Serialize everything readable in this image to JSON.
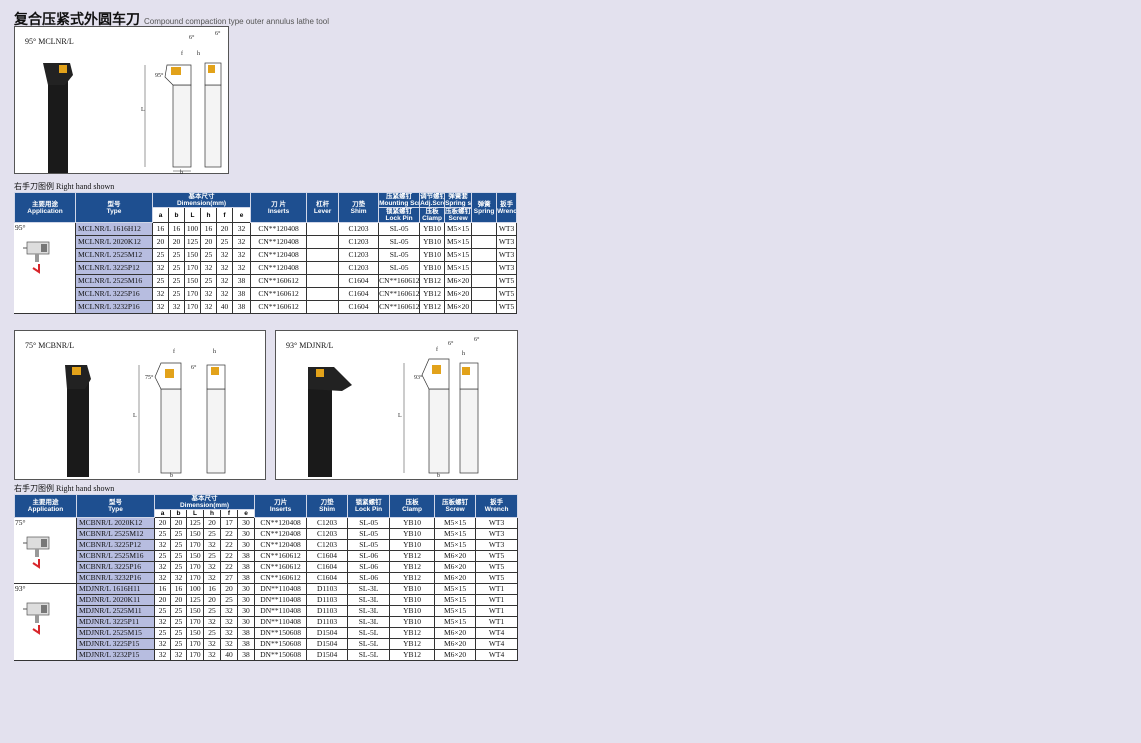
{
  "header": {
    "title": "复合压紧式外圆车刀",
    "subtitle": "Compound compaction type outer annulus lathe tool"
  },
  "figures": [
    {
      "label": "95° MCLNR/L",
      "marks": [
        "6°",
        "6°",
        "95°",
        "L",
        "b",
        "f",
        "h"
      ]
    },
    {
      "label": "75° MCBNR/L",
      "marks": [
        "6°",
        "75°",
        "L",
        "b",
        "f",
        "h"
      ]
    },
    {
      "label": "93° MDJNR/L",
      "marks": [
        "6°",
        "6°",
        "93°",
        "L",
        "b",
        "f",
        "h"
      ]
    }
  ],
  "notes": [
    "右手刀图例 Right hand shown",
    "右手刀图例 Right hand shown"
  ],
  "table1": {
    "columns": [
      {
        "zh": "主要用途",
        "en": "Application"
      },
      {
        "zh": "型号",
        "en": "Type"
      }
    ],
    "dimension": {
      "zh": "基本尺寸",
      "en": "Dimension(mm)"
    },
    "dims": [
      "a",
      "b",
      "L",
      "h",
      "f",
      "e"
    ],
    "after": [
      {
        "zh": "刀 片",
        "en": "Inserts"
      },
      {
        "zh": "杠杆",
        "en": "Lever"
      },
      {
        "zh": "刀垫",
        "en": "Shim"
      },
      {
        "zh": "压紧螺钉",
        "en": "Mounting Screw",
        "sub": {
          "zh": "锁紧螺钉",
          "en": "Lock Pin"
        }
      },
      {
        "zh": "调节螺钉",
        "en": "Adj.Screw",
        "sub": {
          "zh": "压板",
          "en": "Clamp"
        }
      },
      {
        "zh": "弹簧套",
        "en": "Spring sheath",
        "sub": {
          "zh": "压板螺钉",
          "en": "Screw"
        }
      },
      {
        "zh": "弹簧",
        "en": "Spring"
      },
      {
        "zh": "扳手",
        "en": "Wrench"
      }
    ],
    "groups": [
      {
        "application": "95°",
        "rows": [
          [
            "MCLNR/L 1616H12",
            16,
            16,
            100,
            16,
            20,
            32,
            "CN**120408",
            null,
            "C1203",
            "SL-05",
            "YB10",
            "M5×15",
            null,
            "WT3"
          ],
          [
            "MCLNR/L 2020K12",
            20,
            20,
            125,
            20,
            25,
            32,
            "CN**120408",
            null,
            "C1203",
            "SL-05",
            "YB10",
            "M5×15",
            null,
            "WT3"
          ],
          [
            "MCLNR/L 2525M12",
            25,
            25,
            150,
            25,
            32,
            32,
            "CN**120408",
            null,
            "C1203",
            "SL-05",
            "YB10",
            "M5×15",
            null,
            "WT3"
          ],
          [
            "MCLNR/L 3225P12",
            32,
            25,
            170,
            32,
            32,
            32,
            "CN**120408",
            null,
            "C1203",
            "SL-05",
            "YB10",
            "M5×15",
            null,
            "WT3"
          ],
          [
            "MCLNR/L 2525M16",
            25,
            25,
            150,
            25,
            32,
            38,
            "CN**160612",
            null,
            "C1604",
            "CN**160612",
            "YB12",
            "M6×20",
            null,
            "WT5"
          ],
          [
            "MCLNR/L 3225P16",
            32,
            25,
            170,
            32,
            32,
            38,
            "CN**160612",
            null,
            "C1604",
            "CN**160612",
            "YB12",
            "M6×20",
            null,
            "WT5"
          ],
          [
            "MCLNR/L 3232P16",
            32,
            32,
            170,
            32,
            40,
            38,
            "CN**160612",
            null,
            "C1604",
            "CN**160612",
            "YB12",
            "M6×20",
            null,
            "WT5"
          ]
        ]
      }
    ]
  },
  "table2": {
    "columns": [
      {
        "zh": "主要用途",
        "en": "Application"
      },
      {
        "zh": "型号",
        "en": "Type"
      }
    ],
    "dimension": {
      "zh": "基本尺寸",
      "en": "Dimension(mm)"
    },
    "dims": [
      "a",
      "b",
      "L",
      "h",
      "f",
      "e"
    ],
    "after": [
      {
        "zh": "刀片",
        "en": "Inserts"
      },
      {
        "zh": "刀垫",
        "en": "Shim"
      },
      {
        "zh": "锁紧螺钉",
        "en": "Lock Pin"
      },
      {
        "zh": "压板",
        "en": "Clamp"
      },
      {
        "zh": "压板螺钉",
        "en": "Screw"
      },
      {
        "zh": "扳手",
        "en": "Wrench"
      }
    ],
    "groups": [
      {
        "application": "75°",
        "rows": [
          [
            "MCBNR/L 2020K12",
            20,
            20,
            125,
            20,
            17,
            30,
            "CN**120408",
            "C1203",
            "SL-05",
            "YB10",
            "M5×15",
            "WT3"
          ],
          [
            "MCBNR/L 2525M12",
            25,
            25,
            150,
            25,
            22,
            30,
            "CN**120408",
            "C1203",
            "SL-05",
            "YB10",
            "M5×15",
            "WT3"
          ],
          [
            "MCBNR/L 3225P12",
            32,
            25,
            170,
            32,
            22,
            30,
            "CN**120408",
            "C1203",
            "SL-05",
            "YB10",
            "M5×15",
            "WT3"
          ],
          [
            "MCBNR/L 2525M16",
            25,
            25,
            150,
            25,
            22,
            38,
            "CN**160612",
            "C1604",
            "SL-06",
            "YB12",
            "M6×20",
            "WT5"
          ],
          [
            "MCBNR/L 3225P16",
            32,
            25,
            170,
            32,
            22,
            38,
            "CN**160612",
            "C1604",
            "SL-06",
            "YB12",
            "M6×20",
            "WT5"
          ],
          [
            "MCBNR/L 3232P16",
            32,
            32,
            170,
            32,
            27,
            38,
            "CN**160612",
            "C1604",
            "SL-06",
            "YB12",
            "M6×20",
            "WT5"
          ]
        ]
      },
      {
        "application": "93°",
        "rows": [
          [
            "MDJNR/L 1616H11",
            16,
            16,
            100,
            16,
            20,
            30,
            "DN**110408",
            "D1103",
            "SL-3L",
            "YB10",
            "M5×15",
            "WT1"
          ],
          [
            "MDJNR/L 2020K11",
            20,
            20,
            125,
            20,
            25,
            30,
            "DN**110408",
            "D1103",
            "SL-3L",
            "YB10",
            "M5×15",
            "WT1"
          ],
          [
            "MDJNR/L 2525M11",
            25,
            25,
            150,
            25,
            32,
            30,
            "DN**110408",
            "D1103",
            "SL-3L",
            "YB10",
            "M5×15",
            "WT1"
          ],
          [
            "MDJNR/L 3225P11",
            32,
            25,
            170,
            32,
            32,
            30,
            "DN**110408",
            "D1103",
            "SL-3L",
            "YB10",
            "M5×15",
            "WT1"
          ],
          [
            "MDJNR/L 2525M15",
            25,
            25,
            150,
            25,
            32,
            38,
            "DN**150608",
            "D1504",
            "SL-5L",
            "YB12",
            "M6×20",
            "WT4"
          ],
          [
            "MDJNR/L 3225P15",
            32,
            25,
            170,
            32,
            32,
            38,
            "DN**150608",
            "D1504",
            "SL-5L",
            "YB12",
            "M6×20",
            "WT4"
          ],
          [
            "MDJNR/L 3232P15",
            32,
            32,
            170,
            32,
            40,
            38,
            "DN**150608",
            "D1504",
            "SL-5L",
            "YB12",
            "M6×20",
            "WT4"
          ]
        ]
      }
    ]
  }
}
